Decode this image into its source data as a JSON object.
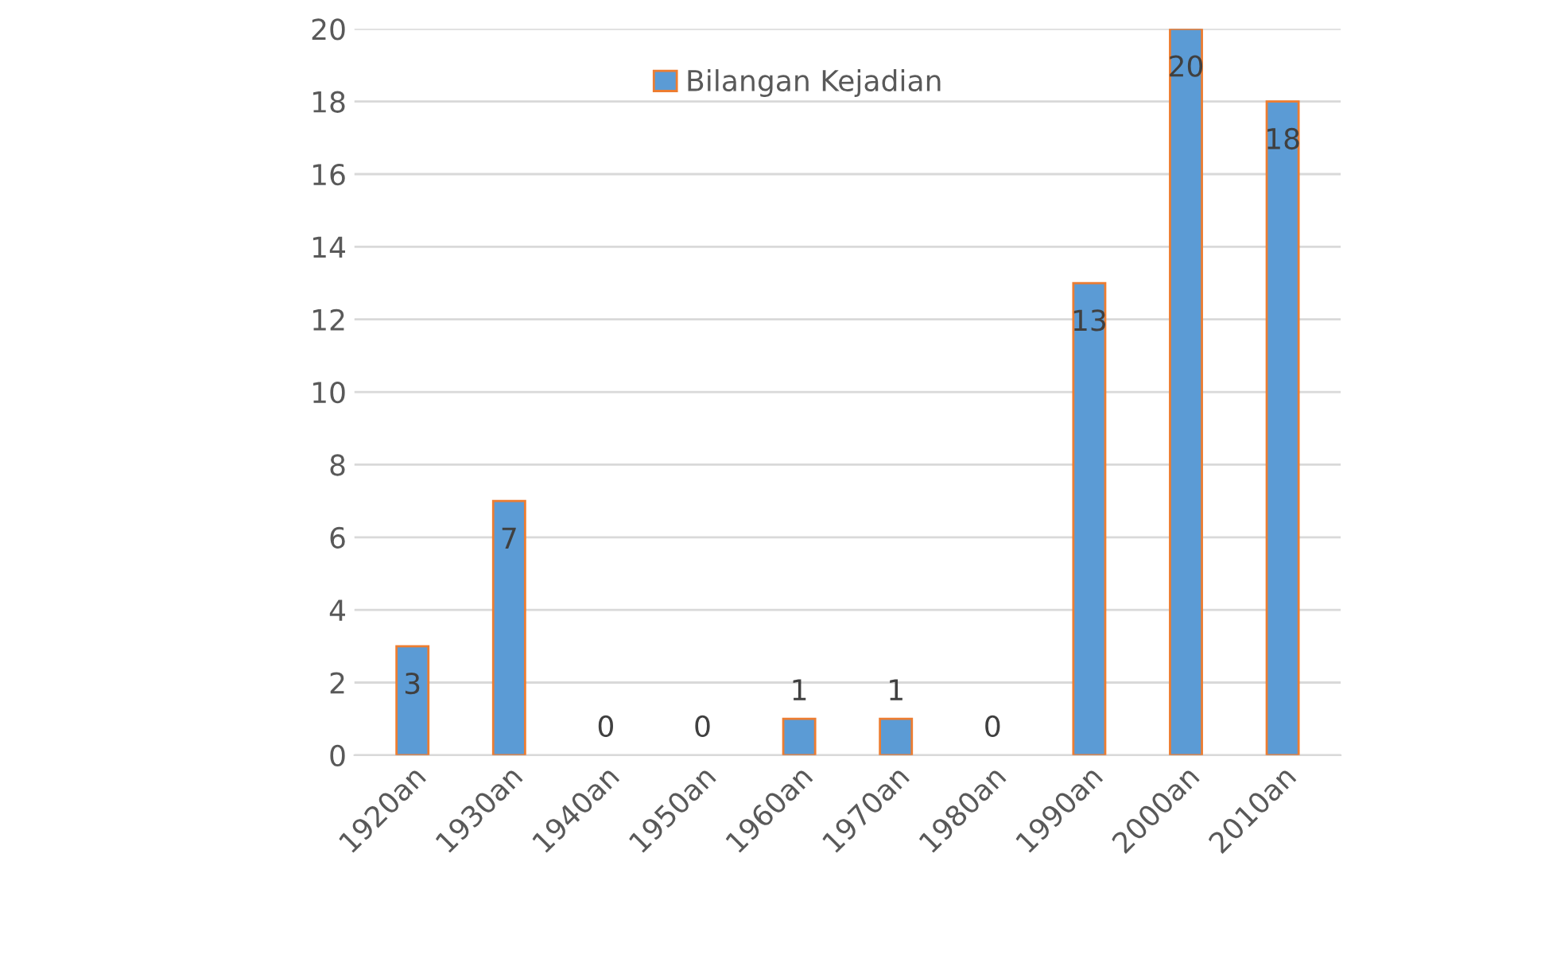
{
  "chart_data": {
    "type": "bar",
    "categories": [
      "1920an",
      "1930an",
      "1940an",
      "1950an",
      "1960an",
      "1970an",
      "1980an",
      "1990an",
      "2000an",
      "2010an"
    ],
    "series": [
      {
        "name": "Bilangan Kejadian",
        "color": "#5b9bd5",
        "values": [
          3,
          7,
          0,
          0,
          1,
          1,
          0,
          13,
          20,
          18
        ]
      }
    ],
    "ylim": [
      0,
      20
    ],
    "yticks": [
      0,
      2,
      4,
      6,
      8,
      10,
      12,
      14,
      16,
      18,
      20
    ],
    "grid": "y",
    "legend": "top",
    "data_labels": true
  }
}
